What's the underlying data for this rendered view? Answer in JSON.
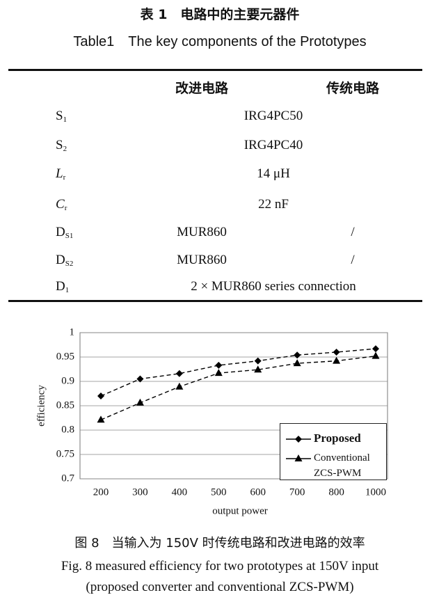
{
  "table": {
    "caption_zh": "表 1　电路中的主要元器件",
    "caption_en": "Table1　The key components of the Prototypes",
    "headers": [
      "改进电路",
      "传统电路"
    ],
    "rows": [
      {
        "symbol": "S",
        "subscript": "1",
        "italic": false,
        "cells": [
          "IRG4PC50"
        ]
      },
      {
        "symbol": "S",
        "subscript": "2",
        "italic": false,
        "cells": [
          "IRG4PC40"
        ]
      },
      {
        "symbol": "L",
        "subscript": "r",
        "italic": true,
        "cells": [
          "14 μH"
        ]
      },
      {
        "symbol": "C",
        "subscript": "r",
        "italic": true,
        "cells": [
          "22 nF"
        ]
      },
      {
        "symbol": "D",
        "subscript": "S1",
        "italic": false,
        "cells": [
          "MUR860",
          "/"
        ]
      },
      {
        "symbol": "D",
        "subscript": "S2",
        "italic": false,
        "cells": [
          "MUR860",
          "/"
        ]
      },
      {
        "symbol": "D",
        "subscript": "1",
        "italic": false,
        "cells": [
          "2 × MUR860 series connection"
        ]
      }
    ]
  },
  "chart_data": {
    "type": "line",
    "x_label": "output power",
    "y_label": "efficiency",
    "categories": [
      "200",
      "300",
      "400",
      "500",
      "600",
      "700",
      "800",
      "1000"
    ],
    "series": [
      {
        "name": "Proposed",
        "color": "#000000",
        "marker": "diamond",
        "values": [
          0.87,
          0.905,
          0.916,
          0.933,
          0.942,
          0.954,
          0.96,
          0.967
        ]
      },
      {
        "name": "Conventional\nZCS-PWM",
        "color": "#000000",
        "marker": "triangle",
        "values": [
          0.821,
          0.856,
          0.889,
          0.917,
          0.924,
          0.937,
          0.942,
          0.952
        ]
      }
    ],
    "line_style": "dashed",
    "ylim": [
      0.7,
      1
    ],
    "yticks": [
      0.7,
      0.75,
      0.8,
      0.85,
      0.9,
      0.95,
      1
    ],
    "grid": true,
    "legend": "lower-right"
  },
  "figure_caption": {
    "zh": "图 8　当输入为 150V 时传统电路和改进电路的效率",
    "en_1": "Fig. 8 measured efficiency for two prototypes at 150V input",
    "en_2": "(proposed converter and conventional ZCS-PWM)"
  }
}
